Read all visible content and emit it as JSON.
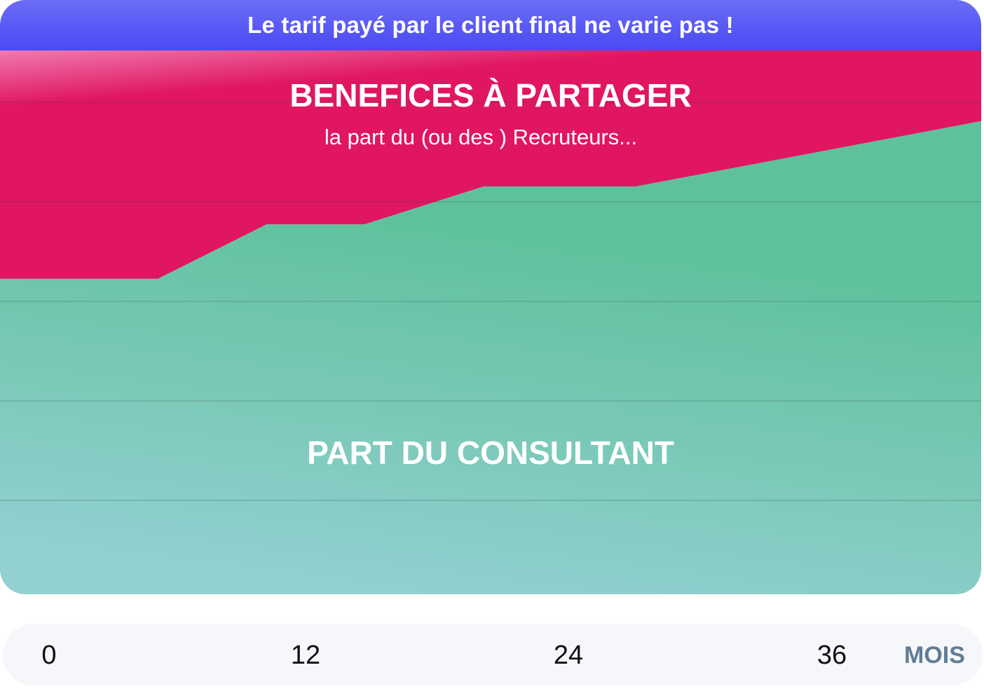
{
  "banner": {
    "text": "Le tarif payé par le client final ne varie pas !"
  },
  "chart_data": {
    "type": "area",
    "title": "",
    "xlabel": "MOIS",
    "ylabel": "",
    "x_ticks": [
      "0",
      "12",
      "24",
      "36"
    ],
    "x": [
      0,
      5,
      10,
      14.5,
      20,
      27,
      38
    ],
    "ylim": [
      0,
      100
    ],
    "grid": true,
    "series": [
      {
        "name": "PART DU CONSULTANT",
        "color": "#62c29f",
        "values": [
          58,
          58,
          68,
          68,
          75,
          75,
          87
        ]
      },
      {
        "name": "BENEFICES À PARTAGER",
        "color": "#e01662",
        "values": [
          42,
          42,
          32,
          32,
          25,
          25,
          13
        ]
      }
    ],
    "annotations": {
      "top_title": "BENEFICES À PARTAGER",
      "top_subtitle": "la part du (ou des ) Recruteurs...",
      "bottom_title": "PART DU CONSULTANT"
    }
  }
}
